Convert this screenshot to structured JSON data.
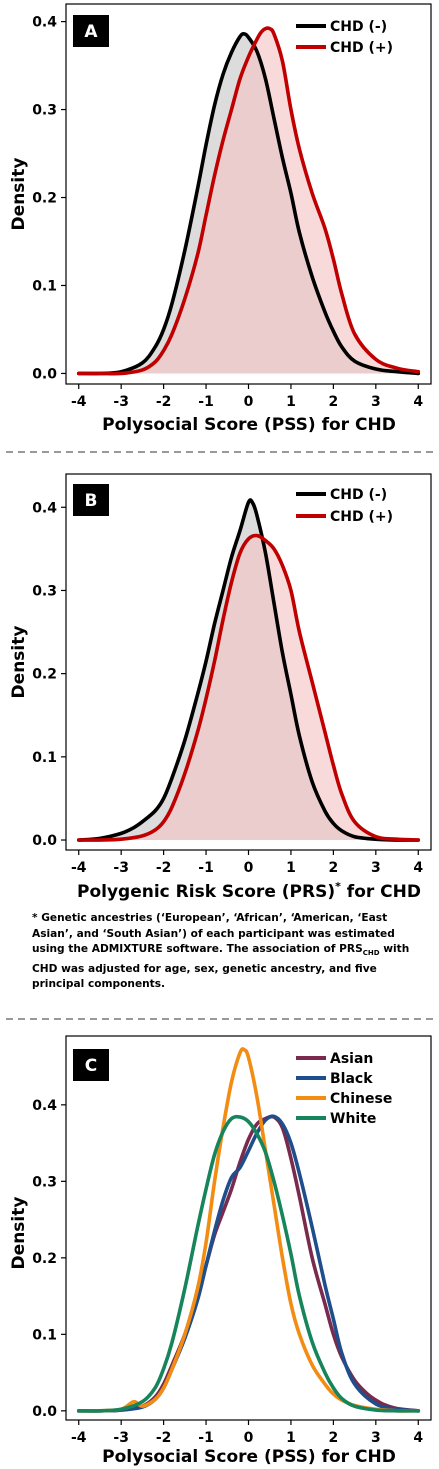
{
  "footnote": {
    "prefix": "* Genetic ancestries (‘European’, ‘African’, ‘American, ‘East Asian’, and ‘South Asian’) of each participant was estimated using the ADMIXTURE software. The association of PRS",
    "sub": "CHD",
    "suffix": " with CHD was adjusted for age, sex, genetic ancestry, and five principal components."
  },
  "chart_data": [
    {
      "panel": "A",
      "type": "area",
      "title": "",
      "xlabel": "Polysocial Score (PSS)  for CHD",
      "ylabel": "Density",
      "xlim": [
        -4.3,
        4.3
      ],
      "ylim": [
        -0.012,
        0.42
      ],
      "xticks": [
        -4,
        -3,
        -2,
        -1,
        0,
        1,
        2,
        3,
        4
      ],
      "yticks": [
        0.0,
        0.1,
        0.2,
        0.3,
        0.4
      ],
      "legend_position": "top-right",
      "grid": false,
      "series": [
        {
          "name": "CHD (-)",
          "color": "#000000",
          "fill": "#c6c6c6",
          "x": [
            -4.0,
            -3.5,
            -3.0,
            -2.5,
            -2.2,
            -2.0,
            -1.8,
            -1.5,
            -1.2,
            -1.0,
            -0.8,
            -0.6,
            -0.4,
            -0.2,
            -0.1,
            0.0,
            0.2,
            0.4,
            0.6,
            0.8,
            1.0,
            1.2,
            1.5,
            1.8,
            2.0,
            2.2,
            2.5,
            3.0,
            3.5,
            4.0
          ],
          "values": [
            0.0,
            0.0,
            0.002,
            0.012,
            0.03,
            0.05,
            0.08,
            0.14,
            0.21,
            0.26,
            0.305,
            0.34,
            0.365,
            0.383,
            0.386,
            0.382,
            0.366,
            0.335,
            0.29,
            0.245,
            0.205,
            0.16,
            0.11,
            0.07,
            0.048,
            0.03,
            0.014,
            0.005,
            0.002,
            0.0
          ]
        },
        {
          "name": "CHD (+)",
          "color": "#c00000",
          "fill": "#f4c3c3",
          "x": [
            -4.0,
            -3.5,
            -3.0,
            -2.5,
            -2.2,
            -2.0,
            -1.8,
            -1.5,
            -1.2,
            -1.0,
            -0.8,
            -0.6,
            -0.4,
            -0.2,
            0.0,
            0.2,
            0.3,
            0.4,
            0.5,
            0.6,
            0.8,
            1.0,
            1.2,
            1.5,
            1.8,
            2.0,
            2.2,
            2.5,
            3.0,
            3.5,
            4.0
          ],
          "values": [
            0.0,
            0.0,
            0.0,
            0.004,
            0.013,
            0.026,
            0.045,
            0.085,
            0.135,
            0.18,
            0.225,
            0.265,
            0.3,
            0.335,
            0.36,
            0.38,
            0.388,
            0.392,
            0.392,
            0.386,
            0.355,
            0.3,
            0.255,
            0.205,
            0.165,
            0.13,
            0.09,
            0.045,
            0.016,
            0.006,
            0.002
          ]
        }
      ]
    },
    {
      "panel": "B",
      "type": "area",
      "title": "",
      "xlabel": "Polygenic Risk Score (PRS)",
      "xlabel_sup": "*",
      "xlabel_suffix": " for CHD",
      "ylabel": "Density",
      "xlim": [
        -4.3,
        4.3
      ],
      "ylim": [
        -0.012,
        0.44
      ],
      "xticks": [
        -4,
        -3,
        -2,
        -1,
        0,
        1,
        2,
        3,
        4
      ],
      "yticks": [
        0.0,
        0.1,
        0.2,
        0.3,
        0.4
      ],
      "legend_position": "top-right",
      "grid": false,
      "series": [
        {
          "name": "CHD (-)",
          "color": "#000000",
          "fill": "#c6c6c6",
          "x": [
            -4.0,
            -3.5,
            -3.0,
            -2.7,
            -2.5,
            -2.2,
            -2.0,
            -1.8,
            -1.5,
            -1.2,
            -1.0,
            -0.8,
            -0.6,
            -0.4,
            -0.2,
            0.0,
            0.1,
            0.2,
            0.4,
            0.6,
            0.8,
            1.0,
            1.2,
            1.5,
            1.8,
            2.0,
            2.2,
            2.5,
            3.0,
            3.5,
            4.0
          ],
          "values": [
            0.0,
            0.002,
            0.008,
            0.015,
            0.022,
            0.035,
            0.05,
            0.075,
            0.12,
            0.175,
            0.215,
            0.26,
            0.3,
            0.34,
            0.372,
            0.406,
            0.405,
            0.39,
            0.345,
            0.285,
            0.225,
            0.175,
            0.125,
            0.07,
            0.035,
            0.02,
            0.011,
            0.004,
            0.001,
            0.0,
            0.0
          ]
        },
        {
          "name": "CHD (+)",
          "color": "#c00000",
          "fill": "#f4c3c3",
          "x": [
            -4.0,
            -3.5,
            -3.0,
            -2.5,
            -2.2,
            -2.0,
            -1.8,
            -1.5,
            -1.2,
            -1.0,
            -0.8,
            -0.6,
            -0.4,
            -0.2,
            0.0,
            0.2,
            0.4,
            0.6,
            0.8,
            1.0,
            1.2,
            1.5,
            1.8,
            2.0,
            2.2,
            2.5,
            3.0,
            3.5,
            4.0
          ],
          "values": [
            0.0,
            0.0,
            0.001,
            0.005,
            0.012,
            0.022,
            0.04,
            0.08,
            0.13,
            0.17,
            0.215,
            0.265,
            0.31,
            0.345,
            0.362,
            0.366,
            0.36,
            0.35,
            0.33,
            0.3,
            0.25,
            0.19,
            0.13,
            0.09,
            0.055,
            0.022,
            0.004,
            0.001,
            0.0
          ]
        }
      ]
    },
    {
      "panel": "C",
      "type": "line",
      "title": "",
      "xlabel": "Polysocial Score (PSS)  for CHD",
      "ylabel": "Density",
      "xlim": [
        -4.3,
        4.3
      ],
      "ylim": [
        -0.012,
        0.49
      ],
      "xticks": [
        -4,
        -3,
        -2,
        -1,
        0,
        1,
        2,
        3,
        4
      ],
      "yticks": [
        0.0,
        0.1,
        0.2,
        0.3,
        0.4
      ],
      "legend_position": "top-right",
      "grid": false,
      "series": [
        {
          "name": "Asian",
          "color": "#7a2a4c",
          "x": [
            -4.0,
            -3.5,
            -3.0,
            -2.5,
            -2.2,
            -2.0,
            -1.8,
            -1.5,
            -1.2,
            -1.0,
            -0.8,
            -0.6,
            -0.4,
            -0.2,
            0.0,
            0.2,
            0.4,
            0.6,
            0.8,
            1.0,
            1.2,
            1.5,
            1.8,
            2.0,
            2.2,
            2.5,
            2.8,
            3.0,
            3.2,
            3.5,
            4.0
          ],
          "values": [
            0.0,
            0.0,
            0.001,
            0.006,
            0.018,
            0.035,
            0.06,
            0.1,
            0.15,
            0.19,
            0.23,
            0.26,
            0.29,
            0.325,
            0.355,
            0.375,
            0.382,
            0.384,
            0.37,
            0.33,
            0.28,
            0.2,
            0.14,
            0.1,
            0.07,
            0.04,
            0.022,
            0.014,
            0.008,
            0.003,
            0.0
          ]
        },
        {
          "name": "Black",
          "color": "#1f4e8c",
          "x": [
            -4.0,
            -3.5,
            -3.0,
            -2.5,
            -2.2,
            -2.0,
            -1.8,
            -1.5,
            -1.2,
            -1.0,
            -0.8,
            -0.6,
            -0.4,
            -0.2,
            0.0,
            0.2,
            0.4,
            0.6,
            0.8,
            1.0,
            1.2,
            1.5,
            1.8,
            2.0,
            2.2,
            2.5,
            3.0,
            3.5,
            4.0
          ],
          "values": [
            0.0,
            0.0,
            0.001,
            0.005,
            0.015,
            0.03,
            0.055,
            0.095,
            0.145,
            0.19,
            0.235,
            0.275,
            0.305,
            0.318,
            0.34,
            0.363,
            0.38,
            0.385,
            0.375,
            0.35,
            0.31,
            0.24,
            0.165,
            0.12,
            0.075,
            0.035,
            0.009,
            0.002,
            0.0
          ]
        },
        {
          "name": "Chinese",
          "color": "#f28c12",
          "x": [
            -4.0,
            -3.5,
            -3.0,
            -2.7,
            -2.5,
            -2.2,
            -2.0,
            -1.8,
            -1.5,
            -1.2,
            -1.0,
            -0.8,
            -0.6,
            -0.4,
            -0.2,
            -0.1,
            0.0,
            0.2,
            0.4,
            0.6,
            0.8,
            1.0,
            1.2,
            1.5,
            1.8,
            2.0,
            2.2,
            2.5,
            3.0,
            3.5,
            4.0
          ],
          "values": [
            0.0,
            0.0,
            0.002,
            0.012,
            0.006,
            0.015,
            0.03,
            0.055,
            0.1,
            0.16,
            0.22,
            0.3,
            0.37,
            0.43,
            0.468,
            0.472,
            0.462,
            0.41,
            0.34,
            0.27,
            0.2,
            0.14,
            0.1,
            0.06,
            0.035,
            0.022,
            0.014,
            0.007,
            0.002,
            0.0,
            0.0
          ]
        },
        {
          "name": "White",
          "color": "#17855c",
          "x": [
            -4.0,
            -3.5,
            -3.0,
            -2.5,
            -2.2,
            -2.0,
            -1.8,
            -1.5,
            -1.2,
            -1.0,
            -0.8,
            -0.6,
            -0.4,
            -0.2,
            0.0,
            0.2,
            0.4,
            0.6,
            0.8,
            1.0,
            1.2,
            1.5,
            1.8,
            2.0,
            2.2,
            2.5,
            3.0,
            3.5,
            4.0
          ],
          "values": [
            0.0,
            0.0,
            0.002,
            0.012,
            0.03,
            0.055,
            0.09,
            0.16,
            0.24,
            0.29,
            0.335,
            0.365,
            0.382,
            0.384,
            0.378,
            0.362,
            0.338,
            0.3,
            0.255,
            0.205,
            0.15,
            0.09,
            0.05,
            0.03,
            0.016,
            0.006,
            0.001,
            0.0,
            0.0
          ]
        }
      ]
    }
  ]
}
